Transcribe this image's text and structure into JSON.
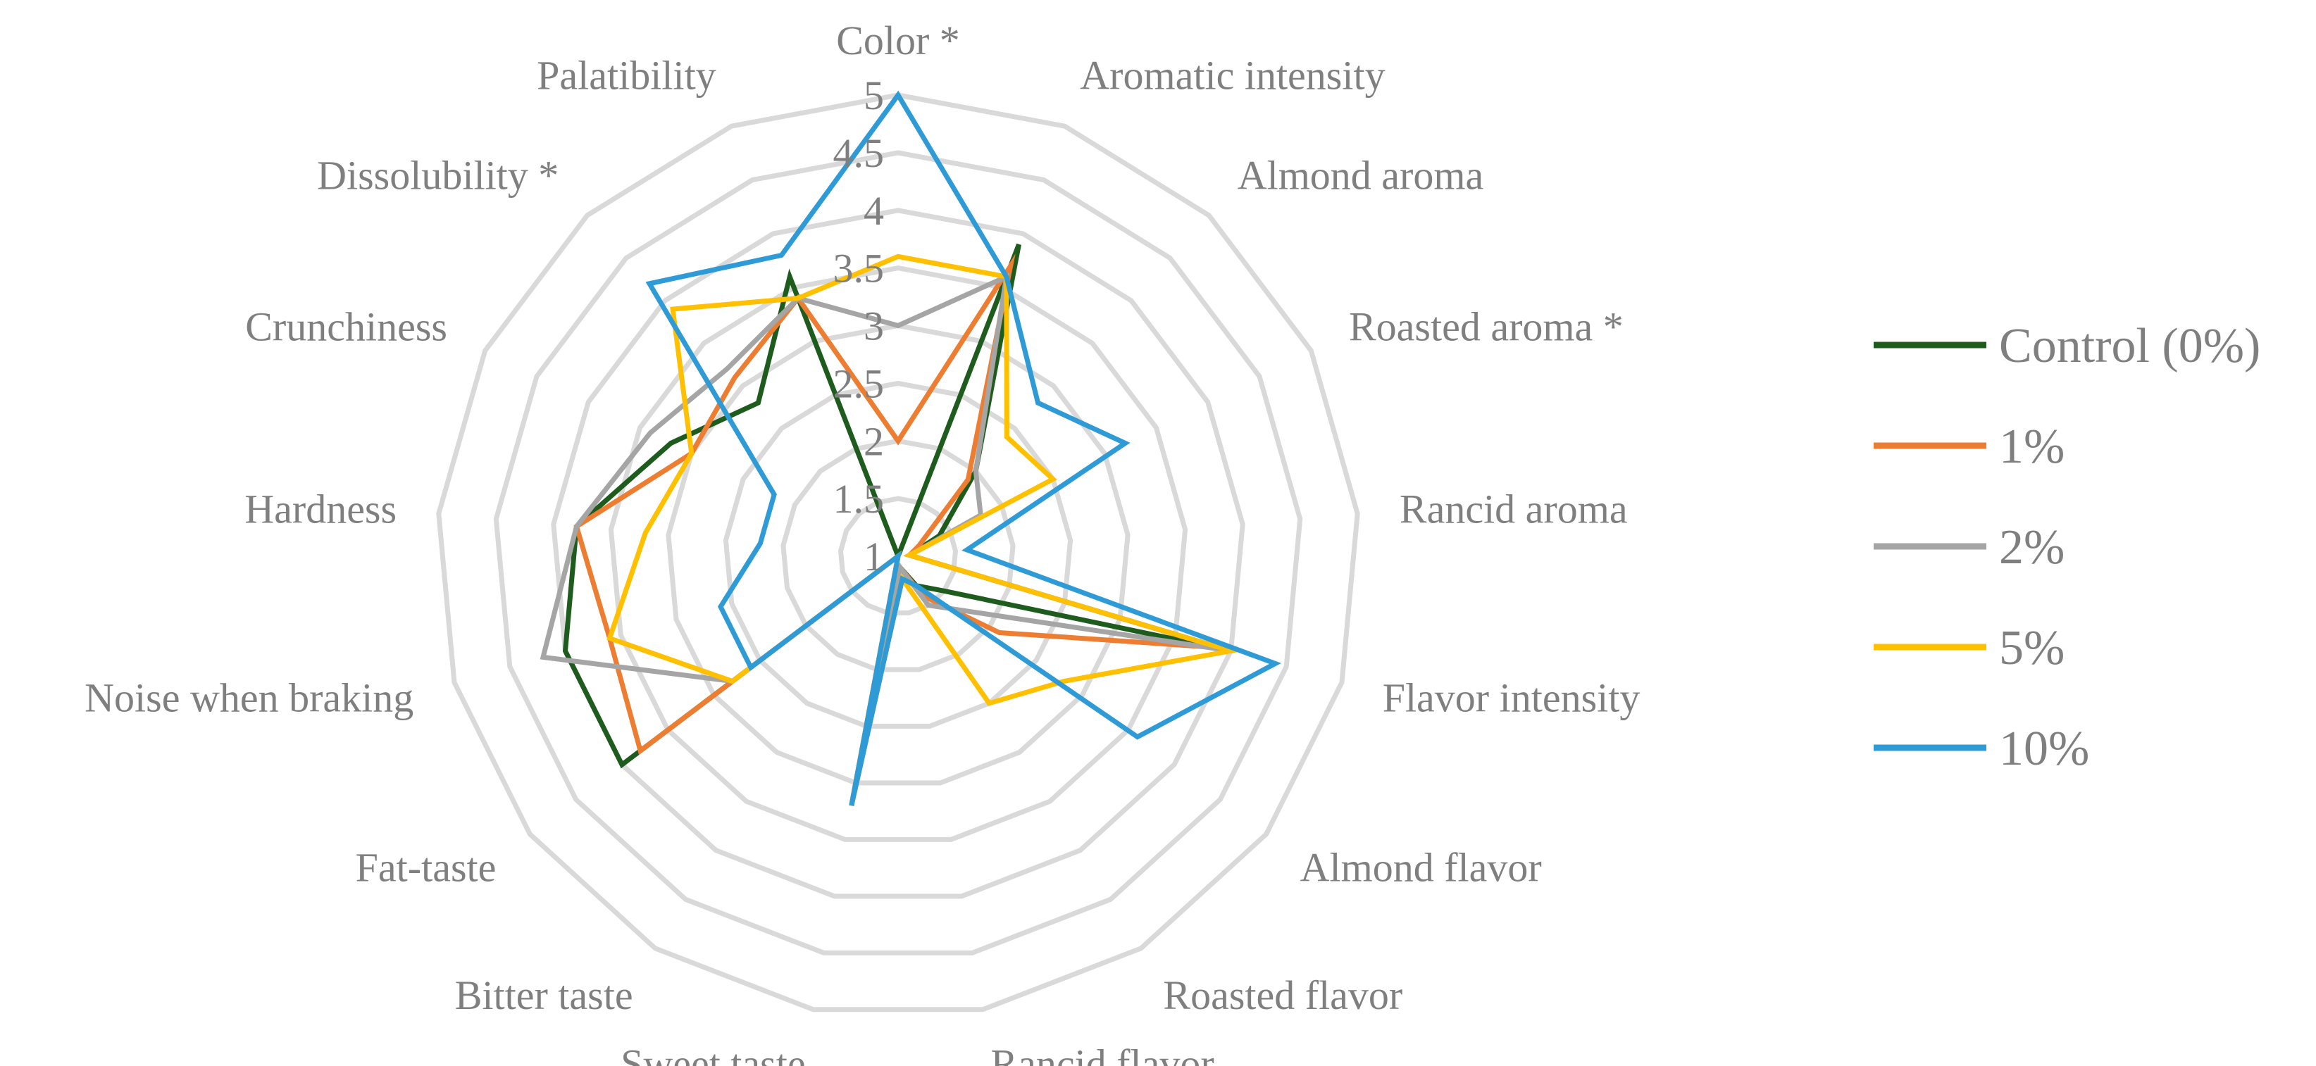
{
  "chart_data": {
    "type": "radar",
    "axes": [
      "Color *",
      "Aromatic intensity",
      "Almond aroma",
      "Roasted aroma *",
      "Rancid aroma",
      "Flavor intensity",
      "Almond flavor",
      "Roasted flavor",
      "Rancid flavor",
      "Sweet taste",
      "Bitter taste",
      "Fat-taste",
      "Noise when braking",
      "Hardness",
      "Crunchiness",
      "Dissolubility *",
      "Palatibility"
    ],
    "rlim": [
      1,
      5
    ],
    "ticks": [
      "1",
      "1.5",
      "2",
      "2.5",
      "3",
      "3.5",
      "4",
      "4.5",
      "5"
    ],
    "tick_values": [
      1,
      1.5,
      2,
      2.5,
      3,
      3.5,
      4,
      4.5,
      5
    ],
    "grid": true,
    "legend_position": "right",
    "series": [
      {
        "name": "Control (0%)",
        "color": "#1e5c1e",
        "values": [
          1.0,
          3.9,
          2.0,
          1.4,
          1.1,
          4.0,
          1.5,
          1.3,
          1.1,
          3.2,
          1.0,
          4.0,
          4.0,
          3.8,
          3.2,
          2.8,
          3.6
        ]
      },
      {
        "name": "1%",
        "color": "#ed7d31",
        "values": [
          2.0,
          3.7,
          1.9,
          1.2,
          1.1,
          3.9,
          2.1,
          1.4,
          1.1,
          3.2,
          1.0,
          3.8,
          3.6,
          3.8,
          3.0,
          3.1,
          3.4
        ]
      },
      {
        "name": "2%",
        "color": "#a5a5a5",
        "values": [
          3.0,
          3.6,
          2.0,
          1.8,
          1.1,
          4.0,
          1.8,
          1.5,
          1.1,
          3.2,
          1.0,
          2.8,
          4.2,
          3.8,
          3.4,
          3.2,
          3.4
        ]
      },
      {
        "name": "5%",
        "color": "#ffc000",
        "values": [
          3.6,
          3.6,
          2.4,
          2.5,
          1.1,
          4.0,
          2.8,
          2.5,
          1.2,
          3.2,
          1.0,
          2.8,
          3.6,
          3.2,
          3.0,
          3.9,
          3.4
        ]
      },
      {
        "name": "10%",
        "color": "#2e9bd6",
        "values": [
          5.0,
          3.6,
          2.8,
          3.2,
          1.6,
          4.4,
          3.6,
          1.3,
          1.2,
          3.2,
          1.0,
          2.6,
          2.6,
          2.2,
          2.2,
          4.2,
          3.8
        ]
      }
    ]
  }
}
